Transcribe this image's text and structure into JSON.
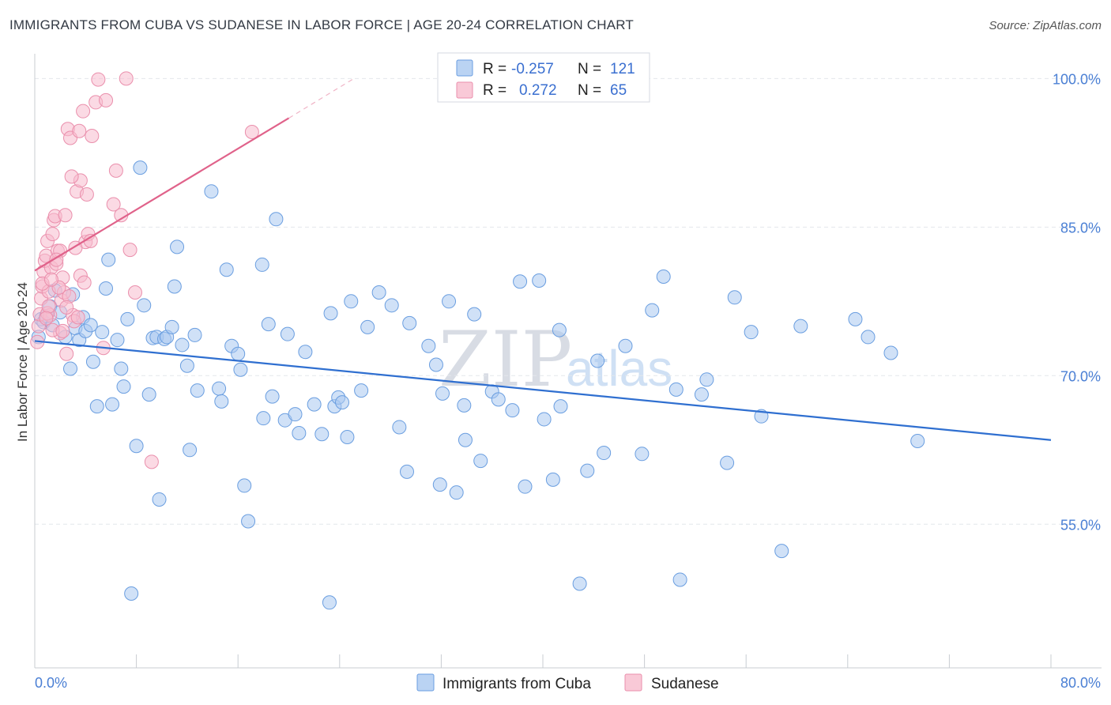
{
  "header": {
    "title": "IMMIGRANTS FROM CUBA VS SUDANESE IN LABOR FORCE | AGE 20-24 CORRELATION CHART",
    "source": "Source: ZipAtlas.com"
  },
  "watermark": {
    "zip": "ZIP",
    "atlas": "atlas"
  },
  "legend_top": {
    "rows": [
      {
        "r_label": "R =",
        "r_value": "-0.257",
        "n_label": "N =",
        "n_value": "121"
      },
      {
        "r_label": "R =",
        "r_value": "0.272",
        "n_label": "N =",
        "n_value": "65"
      }
    ]
  },
  "legend_bottom": {
    "cuba": "Immigrants from Cuba",
    "sudanese": "Sudanese"
  },
  "colors": {
    "cuba_fill": "#a9c8f0",
    "cuba_stroke": "#6a9ee0",
    "cuba_line": "#2f6fd0",
    "sud_fill": "#f7bccd",
    "sud_stroke": "#ea8fac",
    "sud_line": "#e0628a",
    "grid": "#e4e7ec",
    "axis_text": "#4a7fd4"
  },
  "chart_data": {
    "type": "scatter",
    "title": "IMMIGRANTS FROM CUBA VS SUDANESE IN LABOR FORCE | AGE 20-24 CORRELATION CHART",
    "xlabel": "",
    "ylabel": "In Labor Force | Age 20-24",
    "xlim": [
      0,
      80
    ],
    "ylim": [
      40.5,
      102.5
    ],
    "x_tick_labels": [
      "0.0%",
      "80.0%"
    ],
    "y_ticks": [
      55,
      70,
      85,
      100
    ],
    "y_tick_labels": [
      "55.0%",
      "70.0%",
      "85.0%",
      "100.0%"
    ],
    "grid": true,
    "legend_position": "top-center",
    "series": [
      {
        "name": "Immigrants from Cuba",
        "R": -0.257,
        "N": 121,
        "trend": {
          "x": [
            0,
            80
          ],
          "y": [
            73.5,
            63.5
          ]
        },
        "points": [
          [
            0.3,
            73.9
          ],
          [
            0.5,
            75.7
          ],
          [
            0.7,
            75.4
          ],
          [
            0.9,
            76.0
          ],
          [
            1.2,
            77.0
          ],
          [
            1.4,
            75.1
          ],
          [
            1.6,
            78.6
          ],
          [
            2.0,
            76.4
          ],
          [
            2.4,
            73.9
          ],
          [
            2.8,
            70.7
          ],
          [
            3.0,
            78.2
          ],
          [
            3.2,
            74.8
          ],
          [
            3.5,
            73.6
          ],
          [
            3.8,
            75.9
          ],
          [
            4.0,
            74.5
          ],
          [
            4.4,
            75.1
          ],
          [
            4.6,
            71.4
          ],
          [
            4.9,
            66.9
          ],
          [
            5.3,
            74.4
          ],
          [
            5.6,
            78.8
          ],
          [
            5.8,
            81.7
          ],
          [
            6.1,
            67.1
          ],
          [
            6.5,
            73.6
          ],
          [
            6.8,
            70.7
          ],
          [
            7.0,
            68.9
          ],
          [
            7.3,
            75.7
          ],
          [
            7.6,
            48.0
          ],
          [
            8.0,
            62.9
          ],
          [
            8.3,
            91.0
          ],
          [
            8.6,
            77.1
          ],
          [
            9.0,
            68.1
          ],
          [
            9.3,
            73.8
          ],
          [
            9.6,
            73.9
          ],
          [
            9.8,
            57.5
          ],
          [
            10.2,
            73.7
          ],
          [
            10.4,
            73.9
          ],
          [
            10.8,
            74.9
          ],
          [
            11.0,
            79.0
          ],
          [
            11.2,
            83.0
          ],
          [
            11.6,
            73.1
          ],
          [
            12.0,
            71.0
          ],
          [
            12.2,
            62.5
          ],
          [
            12.6,
            74.1
          ],
          [
            12.8,
            68.5
          ],
          [
            13.9,
            88.6
          ],
          [
            14.5,
            68.7
          ],
          [
            14.7,
            67.4
          ],
          [
            15.1,
            80.7
          ],
          [
            15.5,
            73.0
          ],
          [
            16.0,
            72.2
          ],
          [
            16.2,
            70.6
          ],
          [
            16.5,
            58.9
          ],
          [
            16.8,
            55.3
          ],
          [
            17.9,
            81.2
          ],
          [
            18.0,
            65.7
          ],
          [
            18.4,
            75.2
          ],
          [
            18.7,
            67.9
          ],
          [
            19.0,
            85.8
          ],
          [
            19.7,
            65.5
          ],
          [
            19.9,
            74.2
          ],
          [
            20.5,
            66.1
          ],
          [
            20.8,
            64.2
          ],
          [
            21.3,
            72.4
          ],
          [
            22.0,
            67.1
          ],
          [
            22.6,
            64.1
          ],
          [
            23.2,
            47.1
          ],
          [
            23.3,
            76.3
          ],
          [
            23.6,
            66.9
          ],
          [
            23.9,
            67.8
          ],
          [
            24.2,
            67.3
          ],
          [
            24.6,
            63.8
          ],
          [
            24.9,
            77.5
          ],
          [
            25.7,
            68.5
          ],
          [
            26.2,
            74.9
          ],
          [
            27.1,
            78.4
          ],
          [
            28.1,
            77.1
          ],
          [
            28.7,
            64.8
          ],
          [
            29.3,
            60.3
          ],
          [
            29.5,
            75.3
          ],
          [
            31.0,
            73.0
          ],
          [
            31.6,
            71.1
          ],
          [
            31.9,
            59.0
          ],
          [
            32.1,
            68.2
          ],
          [
            32.6,
            77.5
          ],
          [
            33.2,
            58.2
          ],
          [
            33.9,
            63.5
          ],
          [
            33.8,
            67.0
          ],
          [
            34.6,
            76.2
          ],
          [
            35.1,
            61.4
          ],
          [
            36.0,
            68.4
          ],
          [
            36.5,
            67.6
          ],
          [
            37.6,
            66.5
          ],
          [
            38.2,
            79.5
          ],
          [
            38.6,
            58.8
          ],
          [
            39.7,
            79.6
          ],
          [
            40.1,
            65.6
          ],
          [
            40.8,
            59.5
          ],
          [
            41.3,
            74.6
          ],
          [
            41.4,
            66.9
          ],
          [
            42.9,
            49.0
          ],
          [
            43.5,
            60.4
          ],
          [
            44.3,
            71.5
          ],
          [
            44.8,
            62.2
          ],
          [
            46.5,
            73.0
          ],
          [
            47.8,
            62.1
          ],
          [
            48.6,
            76.6
          ],
          [
            49.5,
            80.0
          ],
          [
            50.5,
            68.6
          ],
          [
            50.8,
            49.4
          ],
          [
            52.5,
            68.1
          ],
          [
            52.9,
            69.6
          ],
          [
            54.5,
            61.2
          ],
          [
            55.1,
            77.9
          ],
          [
            56.4,
            74.4
          ],
          [
            57.2,
            65.9
          ],
          [
            58.8,
            52.3
          ],
          [
            60.3,
            75.0
          ],
          [
            64.6,
            75.7
          ],
          [
            65.6,
            73.9
          ],
          [
            67.4,
            72.3
          ],
          [
            69.5,
            63.4
          ]
        ]
      },
      {
        "name": "Sudanese",
        "R": 0.272,
        "N": 65,
        "trend": {
          "x": [
            0,
            20
          ],
          "y": [
            80.6,
            96.0
          ]
        },
        "trend_dashed": {
          "x": [
            20,
            25
          ],
          "y": [
            96.0,
            99.9
          ]
        },
        "points": [
          [
            0.2,
            73.4
          ],
          [
            0.3,
            75.0
          ],
          [
            0.4,
            76.2
          ],
          [
            0.5,
            77.8
          ],
          [
            0.6,
            79.0
          ],
          [
            0.7,
            80.5
          ],
          [
            0.8,
            81.6
          ],
          [
            0.9,
            82.1
          ],
          [
            1.0,
            83.6
          ],
          [
            1.1,
            78.5
          ],
          [
            1.2,
            76.1
          ],
          [
            1.3,
            80.9
          ],
          [
            1.4,
            84.3
          ],
          [
            1.5,
            85.7
          ],
          [
            1.6,
            86.1
          ],
          [
            1.7,
            81.3
          ],
          [
            1.8,
            82.6
          ],
          [
            2.0,
            74.3
          ],
          [
            2.1,
            77.6
          ],
          [
            2.2,
            79.9
          ],
          [
            2.3,
            78.4
          ],
          [
            2.5,
            72.2
          ],
          [
            2.6,
            94.9
          ],
          [
            2.8,
            94.0
          ],
          [
            3.0,
            76.1
          ],
          [
            3.1,
            75.5
          ],
          [
            3.3,
            88.6
          ],
          [
            3.5,
            94.7
          ],
          [
            3.6,
            89.7
          ],
          [
            3.8,
            96.7
          ],
          [
            4.0,
            83.5
          ],
          [
            4.2,
            84.3
          ],
          [
            4.5,
            94.2
          ],
          [
            4.8,
            97.6
          ],
          [
            5.0,
            99.9
          ],
          [
            5.4,
            72.8
          ],
          [
            5.6,
            97.8
          ],
          [
            6.2,
            87.3
          ],
          [
            6.4,
            90.7
          ],
          [
            6.8,
            86.2
          ],
          [
            7.2,
            100.0
          ],
          [
            7.5,
            82.7
          ],
          [
            7.9,
            78.4
          ],
          [
            9.2,
            61.3
          ],
          [
            17.1,
            94.6
          ],
          [
            0.6,
            79.3
          ],
          [
            1.0,
            76.3
          ],
          [
            1.4,
            74.6
          ],
          [
            2.0,
            82.6
          ],
          [
            2.4,
            86.2
          ],
          [
            2.7,
            78.0
          ],
          [
            3.2,
            82.9
          ],
          [
            3.6,
            80.1
          ],
          [
            4.1,
            88.3
          ],
          [
            4.4,
            83.6
          ],
          [
            1.9,
            78.9
          ],
          [
            2.9,
            90.1
          ],
          [
            3.4,
            75.9
          ],
          [
            1.1,
            77.0
          ],
          [
            2.2,
            74.5
          ],
          [
            0.9,
            75.8
          ],
          [
            1.7,
            81.7
          ],
          [
            2.5,
            76.9
          ],
          [
            3.9,
            79.4
          ],
          [
            1.3,
            79.7
          ]
        ]
      }
    ]
  }
}
